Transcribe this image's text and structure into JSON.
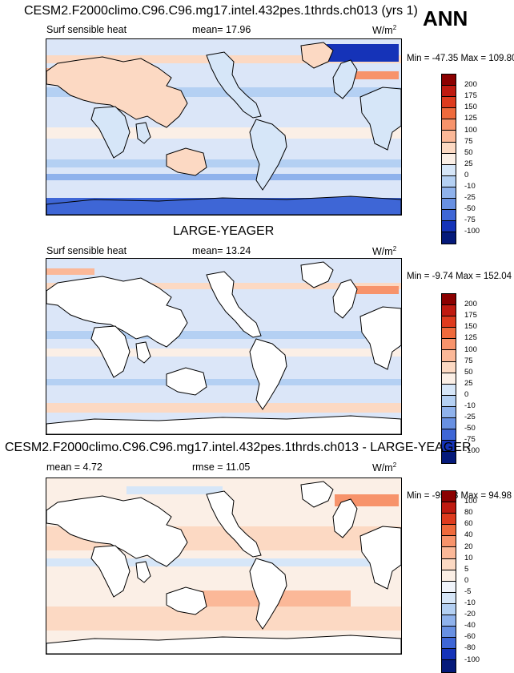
{
  "chart_data": [
    {
      "type": "heatmap",
      "title": "CESM2.F2000climo.C96.C96.mg17.intel.432pes.1thrds.ch013 (yrs 1)",
      "season": "ANN",
      "left_label": "Surf sensible heat",
      "stat_label": "mean=  17.96",
      "mean": 17.96,
      "units": "W/m",
      "units_sup": "2",
      "minmax_label": "Min = -47.35 Max = 109.80",
      "min": -47.35,
      "max": 109.8,
      "colorbar_levels": [
        "200",
        "175",
        "150",
        "125",
        "100",
        "75",
        "50",
        "25",
        "0",
        "-10",
        "-25",
        "-50",
        "-75",
        "-100"
      ],
      "colorbar_colors": [
        "#8b0000",
        "#bf1a10",
        "#de3b1e",
        "#ef6a3c",
        "#f7936b",
        "#fbb898",
        "#fcd9c3",
        "#fbefe6",
        "#d6e6f8",
        "#b4d0f3",
        "#8fb2ec",
        "#6890e2",
        "#3e66d6",
        "#1533b8",
        "#051a7a"
      ]
    },
    {
      "type": "heatmap",
      "title": "LARGE-YEAGER",
      "left_label": "Surf sensible heat",
      "stat_label": "mean=  13.24",
      "mean": 13.24,
      "units": "W/m",
      "units_sup": "2",
      "minmax_label": "Min =  -9.74 Max = 152.04",
      "min": -9.74,
      "max": 152.04,
      "colorbar_levels": [
        "200",
        "175",
        "150",
        "125",
        "100",
        "75",
        "50",
        "25",
        "0",
        "-10",
        "-25",
        "-50",
        "-75",
        "-100"
      ],
      "colorbar_colors": [
        "#8b0000",
        "#bf1a10",
        "#de3b1e",
        "#ef6a3c",
        "#f7936b",
        "#fbb898",
        "#fcd9c3",
        "#fbefe6",
        "#d6e6f8",
        "#b4d0f3",
        "#8fb2ec",
        "#6890e2",
        "#3e66d6",
        "#1533b8",
        "#051a7a"
      ]
    },
    {
      "type": "heatmap",
      "title": "CESM2.F2000climo.C96.C96.mg17.intel.432pes.1thrds.ch013 - LARGE-YEAGER",
      "left_label": "mean =   4.72",
      "mean": 4.72,
      "stat_label": "rmse =  11.05",
      "rmse": 11.05,
      "units": "W/m",
      "units_sup": "2",
      "minmax_label": "Min = -95.98 Max =  94.98",
      "min": -95.98,
      "max": 94.98,
      "colorbar_levels": [
        "100",
        "80",
        "60",
        "40",
        "20",
        "10",
        "5",
        "0",
        "-5",
        "-10",
        "-20",
        "-40",
        "-60",
        "-80",
        "-100"
      ],
      "colorbar_colors": [
        "#8b0000",
        "#bf1a10",
        "#de3b1e",
        "#ef6a3c",
        "#f7936b",
        "#fbb898",
        "#fcd9c3",
        "#fbefe6",
        "#f0f4fb",
        "#d6e6f8",
        "#b4d0f3",
        "#8fb2ec",
        "#6890e2",
        "#3e66d6",
        "#1533b8",
        "#051a7a"
      ]
    }
  ]
}
